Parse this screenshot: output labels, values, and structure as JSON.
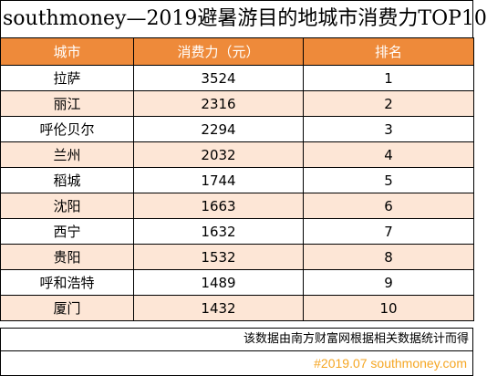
{
  "chart_data": {
    "type": "table",
    "title": "southmoney—2019避暑游目的地城市消费力TOP10",
    "columns": [
      "城市",
      "消费力（元）",
      "排名"
    ],
    "rows": [
      [
        "拉萨",
        "3524",
        "1"
      ],
      [
        "丽江",
        "2316",
        "2"
      ],
      [
        "呼伦贝尔",
        "2294",
        "3"
      ],
      [
        "兰州",
        "2032",
        "4"
      ],
      [
        "稻城",
        "1744",
        "5"
      ],
      [
        "沈阳",
        "1663",
        "6"
      ],
      [
        "西宁",
        "1632",
        "7"
      ],
      [
        "贵阳",
        "1532",
        "8"
      ],
      [
        "呼和浩特",
        "1489",
        "9"
      ],
      [
        "厦门",
        "1432",
        "10"
      ]
    ],
    "note": "该数据由南方财富网根据相关数据统计而得",
    "footer": "#2019.07 southmoney.com",
    "header_color": "#ee8a3a",
    "stripe_color": "#fde6d6",
    "footer_color": "#f5a623"
  }
}
